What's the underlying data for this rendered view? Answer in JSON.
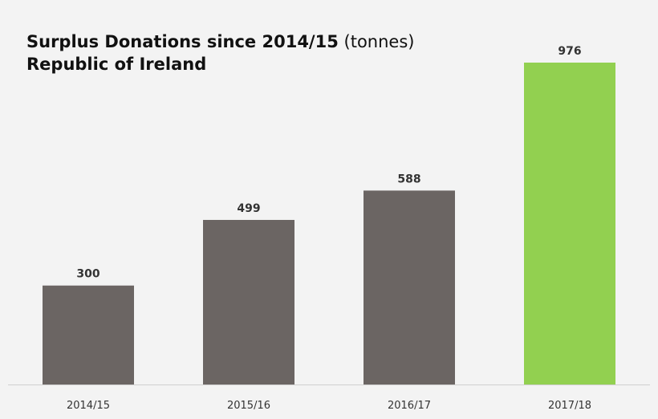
{
  "chart_data": {
    "type": "bar",
    "title": "Surplus Donations since 2014/15",
    "title_unit": "(tonnes)",
    "subtitle": "Republic of Ireland",
    "categories": [
      "2014/15",
      "2015/16",
      "2016/17",
      "2017/18"
    ],
    "values": [
      300,
      499,
      588,
      976
    ],
    "ylim": [
      0,
      976
    ],
    "xlabel": "",
    "ylabel": "",
    "grid": false,
    "colors": {
      "default_bar": "#6b6563",
      "highlight_bar": "#92d050",
      "axis": "#cfcfcf",
      "background": "#f3f3f3"
    },
    "highlight_index": 3
  }
}
